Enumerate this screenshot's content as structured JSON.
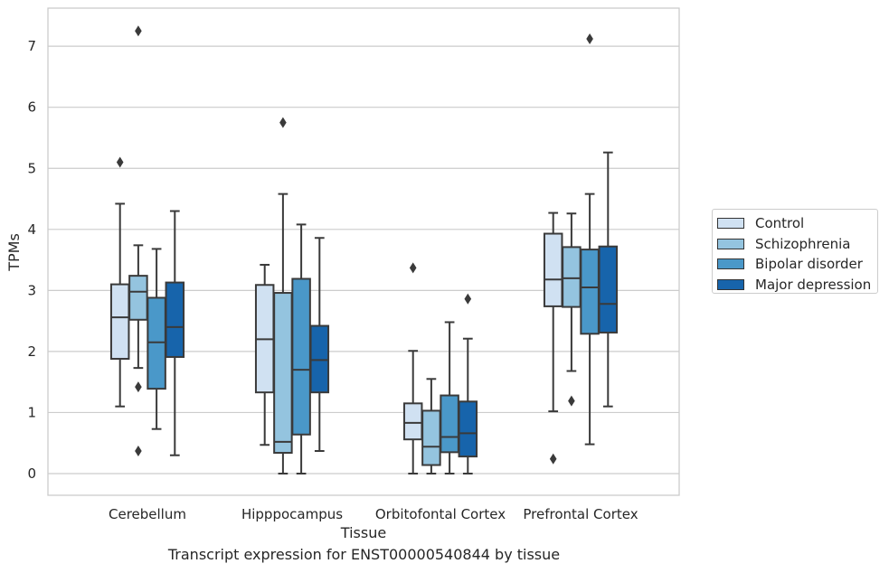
{
  "chart_data": {
    "type": "box",
    "xlabel": "Tissue",
    "ylabel": "TPMs",
    "caption": "Transcript expression for ENST00000540844 by tissue",
    "ylim": [
      -0.35,
      7.6
    ],
    "yticks": [
      0,
      1,
      2,
      3,
      4,
      5,
      6,
      7
    ],
    "grid": "horizontal",
    "legend_position": "outside-right",
    "categories": [
      "Cerebellum",
      "Hipppocampus",
      "Orbitofontal Cortex",
      "Prefrontal Cortex"
    ],
    "series": [
      {
        "name": "Control",
        "color": "#d0e1f2",
        "boxes": [
          {
            "whisker_low": 1.1,
            "q1": 1.88,
            "median": 2.56,
            "q3": 3.1,
            "whisker_high": 4.42,
            "outliers": [
              5.1
            ]
          },
          {
            "whisker_low": 0.47,
            "q1": 1.33,
            "median": 2.2,
            "q3": 3.09,
            "whisker_high": 3.42,
            "outliers": []
          },
          {
            "whisker_low": 0.0,
            "q1": 0.56,
            "median": 0.83,
            "q3": 1.15,
            "whisker_high": 2.01,
            "outliers": [
              3.37
            ]
          },
          {
            "whisker_low": 1.02,
            "q1": 2.74,
            "median": 3.18,
            "q3": 3.93,
            "whisker_high": 4.27,
            "outliers": [
              0.24
            ]
          }
        ]
      },
      {
        "name": "Schizophrenia",
        "color": "#94c4df",
        "boxes": [
          {
            "whisker_low": 1.73,
            "q1": 2.52,
            "median": 2.98,
            "q3": 3.24,
            "whisker_high": 3.74,
            "outliers": [
              7.25,
              1.42,
              0.37
            ]
          },
          {
            "whisker_low": 0.0,
            "q1": 0.34,
            "median": 0.52,
            "q3": 2.96,
            "whisker_high": 4.58,
            "outliers": [
              5.75
            ]
          },
          {
            "whisker_low": 0.0,
            "q1": 0.14,
            "median": 0.44,
            "q3": 1.03,
            "whisker_high": 1.55,
            "outliers": []
          },
          {
            "whisker_low": 1.68,
            "q1": 2.73,
            "median": 3.2,
            "q3": 3.71,
            "whisker_high": 4.26,
            "outliers": [
              1.19
            ]
          }
        ]
      },
      {
        "name": "Bipolar disorder",
        "color": "#4a98c9",
        "boxes": [
          {
            "whisker_low": 0.73,
            "q1": 1.39,
            "median": 2.15,
            "q3": 2.88,
            "whisker_high": 3.68,
            "outliers": []
          },
          {
            "whisker_low": 0.0,
            "q1": 0.64,
            "median": 1.7,
            "q3": 3.19,
            "whisker_high": 4.08,
            "outliers": []
          },
          {
            "whisker_low": 0.0,
            "q1": 0.35,
            "median": 0.6,
            "q3": 1.28,
            "whisker_high": 2.48,
            "outliers": []
          },
          {
            "whisker_low": 0.48,
            "q1": 2.29,
            "median": 3.05,
            "q3": 3.67,
            "whisker_high": 4.58,
            "outliers": [
              7.12
            ]
          }
        ]
      },
      {
        "name": "Major depression",
        "color": "#1764ab",
        "boxes": [
          {
            "whisker_low": 0.3,
            "q1": 1.91,
            "median": 2.4,
            "q3": 3.13,
            "whisker_high": 4.3,
            "outliers": []
          },
          {
            "whisker_low": 0.37,
            "q1": 1.33,
            "median": 1.86,
            "q3": 2.42,
            "whisker_high": 3.86,
            "outliers": []
          },
          {
            "whisker_low": 0.0,
            "q1": 0.28,
            "median": 0.66,
            "q3": 1.18,
            "whisker_high": 2.21,
            "outliers": [
              2.86
            ]
          },
          {
            "whisker_low": 1.1,
            "q1": 2.31,
            "median": 2.78,
            "q3": 3.72,
            "whisker_high": 5.26,
            "outliers": []
          }
        ]
      }
    ]
  }
}
